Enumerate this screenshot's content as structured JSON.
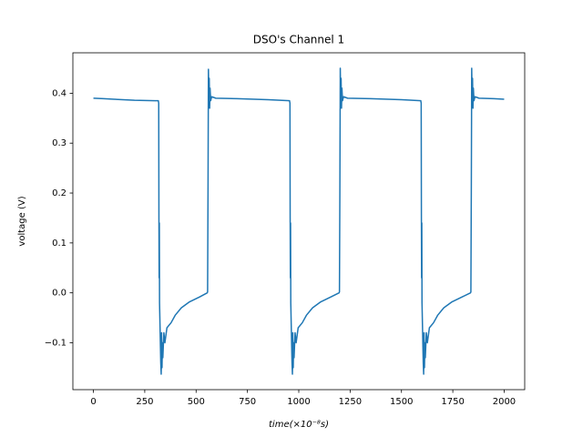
{
  "chart_data": {
    "type": "line",
    "title": "DSO's Channel 1",
    "xlabel": "time(×10⁻⁸s)",
    "ylabel": "voltage (V)",
    "color": "#1f77b4",
    "grid": false,
    "x": [
      0,
      50,
      100,
      200,
      300,
      316,
      318,
      319,
      320,
      321,
      322,
      326,
      328,
      330,
      332,
      334,
      336,
      338,
      343,
      348,
      358,
      378,
      398,
      428,
      468,
      518,
      554,
      556,
      558,
      560,
      562,
      564,
      566,
      568,
      571,
      576,
      596,
      700,
      850,
      955,
      957,
      958,
      959,
      960,
      961,
      965,
      967,
      969,
      971,
      973,
      975,
      977,
      982,
      987,
      997,
      1017,
      1037,
      1067,
      1107,
      1157,
      1196,
      1198,
      1200,
      1202,
      1204,
      1206,
      1208,
      1210,
      1213,
      1218,
      1238,
      1350,
      1500,
      1594,
      1596,
      1597,
      1598,
      1599,
      1600,
      1604,
      1606,
      1608,
      1610,
      1612,
      1614,
      1616,
      1621,
      1626,
      1636,
      1656,
      1676,
      1706,
      1746,
      1796,
      1836,
      1838,
      1840,
      1842,
      1844,
      1846,
      1848,
      1850,
      1853,
      1858,
      1878,
      1950,
      2000
    ],
    "values": [
      0.39,
      0.389,
      0.388,
      0.386,
      0.385,
      0.385,
      0.38,
      0.15,
      0.03,
      0.14,
      -0.02,
      -0.1,
      -0.14,
      -0.163,
      -0.08,
      -0.15,
      -0.1,
      -0.13,
      -0.08,
      -0.1,
      -0.07,
      -0.06,
      -0.045,
      -0.03,
      -0.018,
      -0.008,
      0,
      0.002,
      0.2,
      0.448,
      0.39,
      0.43,
      0.37,
      0.41,
      0.385,
      0.393,
      0.39,
      0.389,
      0.387,
      0.385,
      0.38,
      0.15,
      0.03,
      0.14,
      -0.02,
      -0.1,
      -0.14,
      -0.163,
      -0.08,
      -0.15,
      -0.1,
      -0.13,
      -0.08,
      -0.1,
      -0.07,
      -0.06,
      -0.045,
      -0.03,
      -0.018,
      -0.008,
      0,
      0.002,
      0.2,
      0.45,
      0.39,
      0.43,
      0.37,
      0.41,
      0.385,
      0.393,
      0.39,
      0.389,
      0.387,
      0.385,
      0.38,
      0.15,
      0.03,
      0.14,
      -0.02,
      -0.1,
      -0.14,
      -0.163,
      -0.08,
      -0.15,
      -0.1,
      -0.13,
      -0.08,
      -0.1,
      -0.07,
      -0.06,
      -0.045,
      -0.03,
      -0.018,
      -0.008,
      0,
      0.002,
      0.2,
      0.45,
      0.39,
      0.43,
      0.37,
      0.41,
      0.385,
      0.393,
      0.39,
      0.389,
      0.388
    ],
    "xlim": [
      -100,
      2100
    ],
    "xticks": [
      0,
      250,
      500,
      750,
      1000,
      1250,
      1500,
      1750,
      2000
    ],
    "ylim": [
      -0.194,
      0.481
    ],
    "yticks": [
      {
        "value": -0.1,
        "label": "−0.1"
      },
      {
        "value": 0,
        "label": "0.0"
      },
      0.1,
      0.2,
      0.3,
      0.4
    ]
  }
}
